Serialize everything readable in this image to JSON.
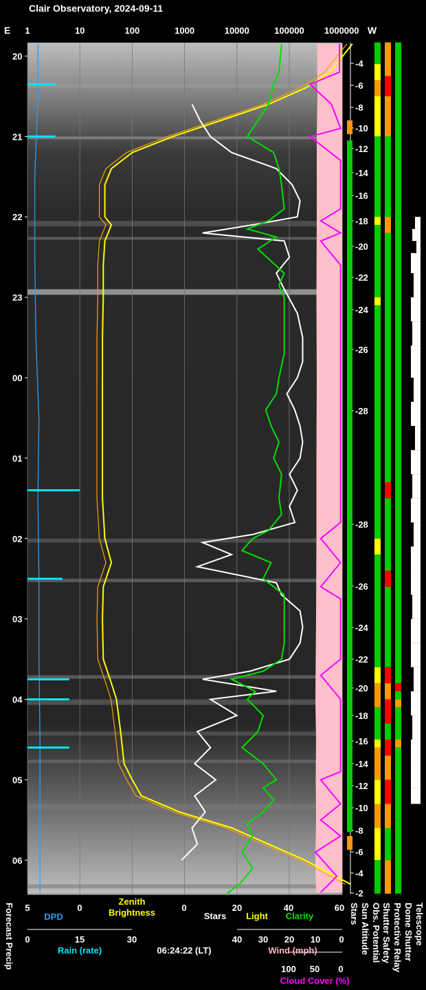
{
  "title": "Clair Observatory, 2024-09-11",
  "timestamp": "06:24:22 (LT)",
  "top_axis": {
    "east_label": "E",
    "west_label": "W",
    "ticks": [
      "1",
      "10",
      "100",
      "1000",
      "10000",
      "100000",
      "1000000"
    ]
  },
  "time_axis": {
    "hours": [
      "20",
      "21",
      "22",
      "23",
      "00",
      "01",
      "02",
      "03",
      "04",
      "05",
      "06"
    ]
  },
  "sun_altitude": {
    "labels": [
      "-4",
      "-6",
      "-8",
      "-10",
      "-12",
      "-14",
      "-16",
      "-18",
      "-20",
      "-22",
      "-24",
      "-26",
      "-28",
      "-28",
      "-26",
      "-24",
      "-22",
      "-20",
      "-18",
      "-16",
      "-14",
      "-12",
      "-10",
      "-8",
      "-6",
      "-4",
      "-2"
    ]
  },
  "bottom_axes": {
    "dpd": {
      "ticks": [
        "5",
        "0"
      ],
      "label": "DPD",
      "color": "#2a9df4"
    },
    "zenith": {
      "ticks": [
        "0"
      ],
      "label": "Zenith\nBrightness",
      "color": "#ffff00"
    },
    "stars_light_clarity": {
      "ticks": [
        "20",
        "40",
        "60"
      ],
      "stars_label": "Stars",
      "light_label": "Light",
      "clarity_label": "Clarity"
    },
    "rain": {
      "ticks": [
        "0",
        "15",
        "30"
      ],
      "label": "Rain (rate)",
      "color": "#00e5ff"
    },
    "wind": {
      "ticks": [
        "40",
        "30",
        "20",
        "10",
        "0"
      ],
      "label": "Wind (mph)",
      "color": "#ffb6c1"
    },
    "cloud": {
      "ticks": [
        "100",
        "50",
        "0"
      ],
      "label": "Cloud Cover (%)",
      "color": "#ff00ff"
    }
  },
  "column_labels": {
    "forecast_precip": "Forecast Precip",
    "stars": "Stars",
    "sun_altitude": "Sun Altitude",
    "obs_potential": "Obs. Potential",
    "shutter_safety": "Shutter Safety",
    "protective_relay": "Protective Relay",
    "dome_shutter": "Dome Shutter",
    "telescope": "Telescope"
  },
  "colors": {
    "background": "#000000",
    "stars": "#ffffff",
    "light": "#ffff00",
    "clarity": "#00e000",
    "rain": "#00e5ff",
    "dpd": "#2a9df4",
    "wind": "#ffc0cb",
    "cloud": "#ff00ff",
    "model_brightness": "#ffa500",
    "status_green": "#00cc00",
    "status_orange": "#ff9900",
    "status_red": "#ff0000",
    "status_yellow": "#ffff00"
  },
  "chart_data": {
    "type": "line",
    "title": "Clair Observatory, 2024-09-11",
    "x_log_ticks": [
      1,
      10,
      100,
      1000,
      10000,
      100000,
      1000000
    ],
    "time_hours": [
      20,
      21,
      22,
      23,
      0,
      1,
      2,
      3,
      4,
      5,
      6
    ],
    "time_range": [
      "19:50",
      "06:25"
    ],
    "series": [
      {
        "name": "Clarity",
        "unit": "0-60",
        "points": [
          [
            19.85,
            37
          ],
          [
            20.2,
            36
          ],
          [
            20.35,
            34
          ],
          [
            20.6,
            32
          ],
          [
            20.9,
            26
          ],
          [
            21.0,
            24
          ],
          [
            21.2,
            34
          ],
          [
            21.4,
            36
          ],
          [
            21.6,
            37
          ],
          [
            21.9,
            38
          ],
          [
            22.05,
            32
          ],
          [
            22.15,
            24
          ],
          [
            22.25,
            35
          ],
          [
            22.4,
            28
          ],
          [
            22.55,
            33
          ],
          [
            22.7,
            38
          ],
          [
            22.85,
            36
          ],
          [
            23.0,
            38
          ],
          [
            23.3,
            38
          ],
          [
            23.7,
            38
          ],
          [
            24.0,
            36
          ],
          [
            24.2,
            35
          ],
          [
            24.4,
            31
          ],
          [
            24.6,
            33
          ],
          [
            24.8,
            36
          ],
          [
            25.0,
            34
          ],
          [
            25.2,
            37
          ],
          [
            25.5,
            36
          ],
          [
            25.7,
            37
          ],
          [
            25.9,
            32
          ],
          [
            26.0,
            26
          ],
          [
            26.15,
            22
          ],
          [
            26.3,
            33
          ],
          [
            26.5,
            30
          ],
          [
            26.7,
            38
          ],
          [
            27.0,
            38
          ],
          [
            27.3,
            38
          ],
          [
            27.5,
            37
          ],
          [
            27.65,
            30
          ],
          [
            27.75,
            18
          ],
          [
            27.9,
            27
          ],
          [
            28.0,
            24
          ],
          [
            28.2,
            30
          ],
          [
            28.4,
            28
          ],
          [
            28.6,
            22
          ],
          [
            28.8,
            30
          ],
          [
            29.0,
            35
          ],
          [
            29.1,
            30
          ],
          [
            29.25,
            34
          ],
          [
            29.4,
            30
          ],
          [
            29.55,
            24
          ],
          [
            29.7,
            26
          ],
          [
            29.9,
            22
          ],
          [
            30.1,
            26
          ],
          [
            30.3,
            21
          ],
          [
            30.42,
            16
          ]
        ]
      },
      {
        "name": "Stars",
        "unit": "0-60",
        "points": [
          [
            20.6,
            3
          ],
          [
            20.8,
            6
          ],
          [
            21.0,
            10
          ],
          [
            21.2,
            18
          ],
          [
            21.4,
            35
          ],
          [
            21.6,
            41
          ],
          [
            21.8,
            44
          ],
          [
            22.0,
            43
          ],
          [
            22.1,
            26
          ],
          [
            22.2,
            7
          ],
          [
            22.3,
            38
          ],
          [
            22.5,
            40
          ],
          [
            22.7,
            35
          ],
          [
            22.9,
            38
          ],
          [
            23.2,
            43
          ],
          [
            23.5,
            45
          ],
          [
            23.8,
            45
          ],
          [
            24.0,
            43
          ],
          [
            24.2,
            39
          ],
          [
            24.4,
            42
          ],
          [
            24.6,
            44
          ],
          [
            24.8,
            45
          ],
          [
            25.0,
            44
          ],
          [
            25.2,
            40
          ],
          [
            25.4,
            43
          ],
          [
            25.6,
            40
          ],
          [
            25.8,
            42
          ],
          [
            25.95,
            26
          ],
          [
            26.05,
            7
          ],
          [
            26.2,
            18
          ],
          [
            26.35,
            5
          ],
          [
            26.55,
            35
          ],
          [
            26.7,
            37
          ],
          [
            26.9,
            44
          ],
          [
            27.1,
            45
          ],
          [
            27.3,
            44
          ],
          [
            27.5,
            40
          ],
          [
            27.65,
            25
          ],
          [
            27.75,
            7
          ],
          [
            27.9,
            35
          ],
          [
            28.0,
            10
          ],
          [
            28.2,
            20
          ],
          [
            28.4,
            5
          ],
          [
            28.6,
            10
          ],
          [
            28.8,
            4
          ],
          [
            29.0,
            12
          ],
          [
            29.2,
            4
          ],
          [
            29.4,
            8
          ],
          [
            29.6,
            3
          ],
          [
            29.8,
            5
          ],
          [
            30.0,
            -1
          ]
        ]
      },
      {
        "name": "Light",
        "unit": "zenith brightness",
        "points": [
          [
            19.85,
            1600000
          ],
          [
            20.2,
            600000
          ],
          [
            20.4,
            200000
          ],
          [
            20.6,
            40000
          ],
          [
            20.8,
            5000
          ],
          [
            21.0,
            600
          ],
          [
            21.2,
            100
          ],
          [
            21.4,
            40
          ],
          [
            21.6,
            30
          ],
          [
            22.0,
            30
          ],
          [
            22.1,
            40
          ],
          [
            22.3,
            30
          ],
          [
            22.6,
            28
          ],
          [
            23.0,
            28
          ],
          [
            23.5,
            27
          ],
          [
            24.0,
            27
          ],
          [
            24.5,
            27
          ],
          [
            25.0,
            27
          ],
          [
            25.5,
            27
          ],
          [
            26.0,
            30
          ],
          [
            26.3,
            40
          ],
          [
            26.6,
            28
          ],
          [
            27.0,
            27
          ],
          [
            27.5,
            28
          ],
          [
            27.8,
            40
          ],
          [
            28.0,
            50
          ],
          [
            28.4,
            60
          ],
          [
            28.8,
            70
          ],
          [
            29.0,
            100
          ],
          [
            29.2,
            150
          ],
          [
            29.4,
            800
          ],
          [
            29.6,
            8000
          ],
          [
            29.8,
            40000
          ],
          [
            30.0,
            200000
          ],
          [
            30.3,
            1500000
          ]
        ]
      },
      {
        "name": "Cloud Cover (%)",
        "unit": "%",
        "points": [
          [
            19.85,
            5
          ],
          [
            20.2,
            5
          ],
          [
            20.35,
            60
          ],
          [
            20.6,
            20
          ],
          [
            20.9,
            3
          ],
          [
            21.0,
            60
          ],
          [
            21.3,
            3
          ],
          [
            21.9,
            3
          ],
          [
            22.05,
            40
          ],
          [
            22.2,
            3
          ],
          [
            22.3,
            40
          ],
          [
            22.6,
            3
          ],
          [
            23.0,
            3
          ],
          [
            25.8,
            3
          ],
          [
            26.0,
            40
          ],
          [
            26.3,
            3
          ],
          [
            26.6,
            40
          ],
          [
            26.75,
            3
          ],
          [
            27.5,
            3
          ],
          [
            27.7,
            40
          ],
          [
            28.0,
            3
          ],
          [
            28.9,
            3
          ],
          [
            29.0,
            40
          ],
          [
            29.3,
            3
          ],
          [
            29.5,
            40
          ],
          [
            29.7,
            3
          ],
          [
            29.9,
            50
          ],
          [
            30.2,
            10
          ],
          [
            30.4,
            40
          ]
        ]
      },
      {
        "name": "Rain (rate)",
        "unit": "rate",
        "points": [
          [
            20.3,
            0
          ],
          [
            20.35,
            8
          ],
          [
            20.4,
            0
          ],
          [
            20.95,
            0
          ],
          [
            21.0,
            8
          ],
          [
            21.05,
            0
          ],
          [
            25.35,
            0
          ],
          [
            25.4,
            15
          ],
          [
            25.45,
            0
          ],
          [
            26.45,
            0
          ],
          [
            26.5,
            10
          ],
          [
            26.55,
            0
          ],
          [
            27.7,
            0
          ],
          [
            27.75,
            12
          ],
          [
            27.85,
            0
          ],
          [
            27.95,
            0
          ],
          [
            28.0,
            12
          ],
          [
            28.1,
            0
          ],
          [
            28.5,
            0
          ],
          [
            28.6,
            12
          ],
          [
            28.7,
            0
          ]
        ]
      },
      {
        "name": "DPD",
        "unit": "deg",
        "points": [
          [
            19.85,
            4
          ],
          [
            20.5,
            4
          ],
          [
            21.5,
            4.3
          ],
          [
            22.5,
            4.3
          ],
          [
            23.5,
            4.2
          ],
          [
            24.5,
            3.9
          ],
          [
            25.5,
            4.0
          ],
          [
            26.5,
            3.9
          ],
          [
            27.5,
            3.9
          ],
          [
            28.5,
            3.8
          ],
          [
            29.5,
            3.8
          ],
          [
            30.4,
            3.8
          ]
        ]
      },
      {
        "name": "Wind (mph)",
        "unit": "mph",
        "points": [
          [
            19.85,
            3
          ],
          [
            20.5,
            2
          ],
          [
            21.0,
            4
          ],
          [
            22.0,
            4
          ],
          [
            23.0,
            5
          ],
          [
            24.0,
            4
          ],
          [
            25.0,
            5
          ],
          [
            26.0,
            5
          ],
          [
            27.0,
            6
          ],
          [
            28.0,
            8
          ],
          [
            28.5,
            6
          ],
          [
            29.0,
            7
          ],
          [
            29.5,
            6
          ],
          [
            30.0,
            8
          ],
          [
            30.4,
            6
          ]
        ]
      }
    ],
    "x_axis_top": "log brightness 1 - 1000000",
    "bottom_label_axes": [
      "DPD",
      "Zenith Brightness",
      "Stars",
      "Light",
      "Clarity",
      "Rain (rate)",
      "Wind (mph)",
      "Cloud Cover (%)"
    ]
  }
}
